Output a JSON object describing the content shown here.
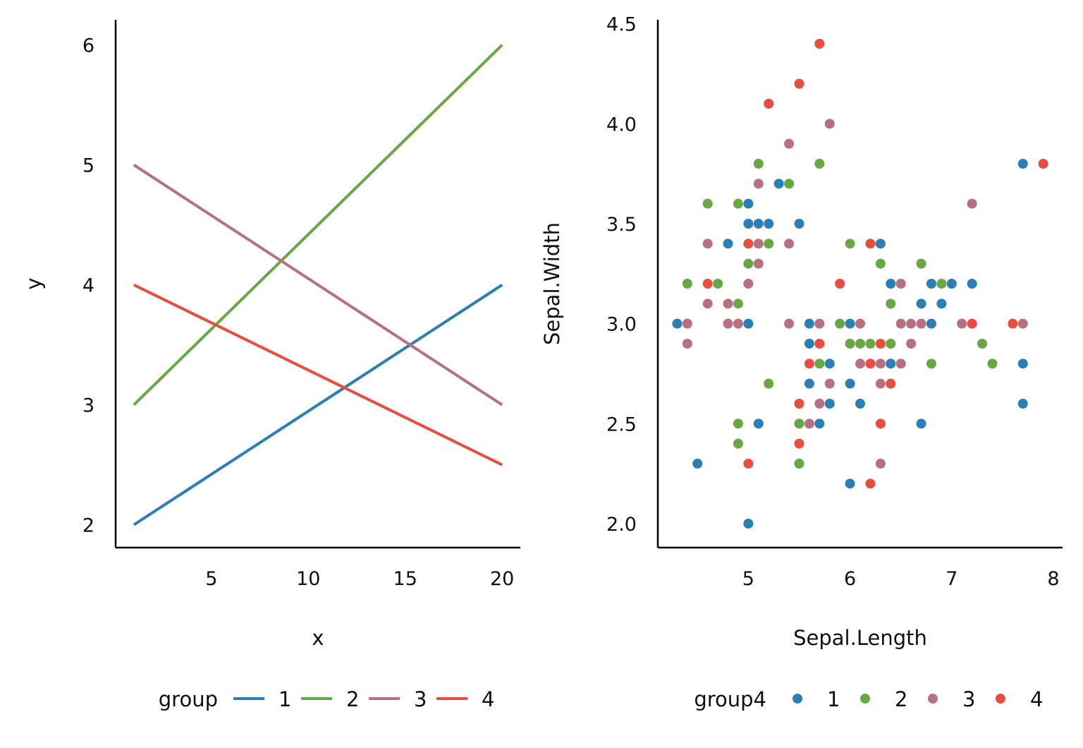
{
  "colors": {
    "1": "#2a7fb8",
    "2": "#67a844",
    "3": "#b86f80",
    "4": "#e84d3d"
  },
  "chart_data": [
    {
      "type": "line",
      "xlabel": "x",
      "ylabel": "y",
      "xlim": [
        0.06,
        20.94
      ],
      "ylim": [
        1.81,
        6.21
      ],
      "xticks": [
        5,
        10,
        15,
        20
      ],
      "yticks": [
        2,
        3,
        4,
        5,
        6
      ],
      "grid": false,
      "legend": {
        "title": "group",
        "placement": "bottom",
        "entries": [
          "1",
          "2",
          "3",
          "4"
        ]
      },
      "series": [
        {
          "name": "1",
          "x": [
            1,
            20
          ],
          "y": [
            2,
            4
          ]
        },
        {
          "name": "2",
          "x": [
            1,
            20
          ],
          "y": [
            3,
            6
          ]
        },
        {
          "name": "3",
          "x": [
            1,
            20
          ],
          "y": [
            5,
            3
          ]
        },
        {
          "name": "4",
          "x": [
            1,
            20
          ],
          "y": [
            4,
            2.5
          ]
        }
      ]
    },
    {
      "type": "scatter",
      "xlabel": "Sepal.Length",
      "ylabel": "Sepal.Width",
      "xlim": [
        4.11,
        8.09
      ],
      "ylim": [
        1.88,
        4.52
      ],
      "xticks": [
        5,
        6,
        7,
        8
      ],
      "yticks": [
        "2.0",
        "2.5",
        "3.0",
        "3.5",
        "4.0",
        "4.5"
      ],
      "grid": false,
      "legend": {
        "title": "group4",
        "placement": "bottom",
        "entries": [
          "1",
          "2",
          "3",
          "4"
        ]
      },
      "series": [
        {
          "name": "1",
          "points": [
            [
              4.3,
              3.0
            ],
            [
              4.5,
              2.3
            ],
            [
              4.8,
              3.4
            ],
            [
              5.0,
              3.6
            ],
            [
              5.0,
              3.5
            ],
            [
              5.1,
              3.5
            ],
            [
              5.2,
              3.5
            ],
            [
              5.3,
              3.7
            ],
            [
              5.5,
              3.5
            ],
            [
              5.0,
              3.0
            ],
            [
              5.1,
              2.5
            ],
            [
              5.0,
              2.0
            ],
            [
              5.6,
              3.0
            ],
            [
              5.6,
              2.9
            ],
            [
              5.6,
              2.7
            ],
            [
              5.8,
              2.8
            ],
            [
              5.8,
              2.6
            ],
            [
              5.7,
              2.5
            ],
            [
              6.0,
              3.0
            ],
            [
              6.0,
              2.7
            ],
            [
              6.1,
              2.6
            ],
            [
              6.0,
              2.2
            ],
            [
              6.3,
              3.4
            ],
            [
              6.4,
              3.2
            ],
            [
              6.4,
              2.8
            ],
            [
              6.7,
              3.1
            ],
            [
              6.8,
              3.2
            ],
            [
              6.9,
              3.1
            ],
            [
              7.0,
              3.2
            ],
            [
              6.8,
              3.0
            ],
            [
              6.7,
              2.5
            ],
            [
              7.2,
              3.2
            ],
            [
              7.7,
              3.8
            ],
            [
              7.7,
              2.8
            ],
            [
              7.7,
              2.6
            ]
          ]
        },
        {
          "name": "2",
          "points": [
            [
              4.4,
              3.2
            ],
            [
              4.6,
              3.6
            ],
            [
              4.7,
              3.2
            ],
            [
              4.9,
              3.6
            ],
            [
              5.1,
              3.8
            ],
            [
              5.4,
              3.7
            ],
            [
              5.7,
              3.8
            ],
            [
              5.0,
              3.3
            ],
            [
              5.2,
              3.4
            ],
            [
              4.9,
              3.1
            ],
            [
              4.9,
              2.5
            ],
            [
              4.9,
              2.4
            ],
            [
              5.2,
              2.7
            ],
            [
              5.5,
              2.5
            ],
            [
              5.5,
              2.3
            ],
            [
              5.7,
              2.8
            ],
            [
              5.9,
              3.0
            ],
            [
              6.0,
              3.4
            ],
            [
              6.0,
              2.9
            ],
            [
              6.1,
              2.9
            ],
            [
              6.2,
              2.9
            ],
            [
              6.3,
              3.3
            ],
            [
              6.4,
              3.1
            ],
            [
              6.4,
              2.9
            ],
            [
              6.7,
              3.3
            ],
            [
              6.9,
              3.2
            ],
            [
              6.8,
              2.8
            ],
            [
              7.3,
              2.9
            ],
            [
              7.4,
              2.8
            ]
          ]
        },
        {
          "name": "3",
          "points": [
            [
              4.4,
              3.0
            ],
            [
              4.4,
              2.9
            ],
            [
              4.6,
              3.4
            ],
            [
              4.6,
              3.1
            ],
            [
              4.8,
              3.1
            ],
            [
              4.8,
              3.0
            ],
            [
              4.9,
              3.0
            ],
            [
              5.0,
              3.2
            ],
            [
              5.1,
              3.7
            ],
            [
              5.1,
              3.4
            ],
            [
              5.1,
              3.3
            ],
            [
              5.4,
              3.9
            ],
            [
              5.4,
              3.4
            ],
            [
              5.8,
              4.0
            ],
            [
              5.4,
              3.0
            ],
            [
              5.7,
              3.0
            ],
            [
              5.6,
              2.5
            ],
            [
              5.7,
              2.6
            ],
            [
              5.8,
              2.7
            ],
            [
              6.1,
              3.0
            ],
            [
              6.1,
              2.8
            ],
            [
              6.3,
              2.8
            ],
            [
              6.3,
              2.7
            ],
            [
              6.3,
              2.3
            ],
            [
              6.5,
              3.0
            ],
            [
              6.5,
              3.2
            ],
            [
              6.6,
              3.0
            ],
            [
              6.6,
              2.9
            ],
            [
              6.7,
              3.0
            ],
            [
              6.5,
              2.8
            ],
            [
              7.1,
              3.0
            ],
            [
              7.2,
              3.6
            ],
            [
              7.7,
              3.0
            ]
          ]
        },
        {
          "name": "4",
          "points": [
            [
              5.7,
              4.4
            ],
            [
              5.5,
              4.2
            ],
            [
              5.2,
              4.1
            ],
            [
              5.0,
              3.4
            ],
            [
              4.6,
              3.2
            ],
            [
              5.9,
              3.2
            ],
            [
              6.2,
              3.4
            ],
            [
              5.7,
              2.9
            ],
            [
              5.6,
              2.8
            ],
            [
              6.2,
              2.8
            ],
            [
              6.3,
              2.9
            ],
            [
              6.4,
              2.7
            ],
            [
              5.5,
              2.6
            ],
            [
              5.5,
              2.4
            ],
            [
              5.0,
              2.3
            ],
            [
              6.3,
              2.5
            ],
            [
              6.2,
              2.2
            ],
            [
              7.2,
              3.0
            ],
            [
              7.6,
              3.0
            ],
            [
              7.9,
              3.8
            ]
          ]
        }
      ]
    }
  ]
}
